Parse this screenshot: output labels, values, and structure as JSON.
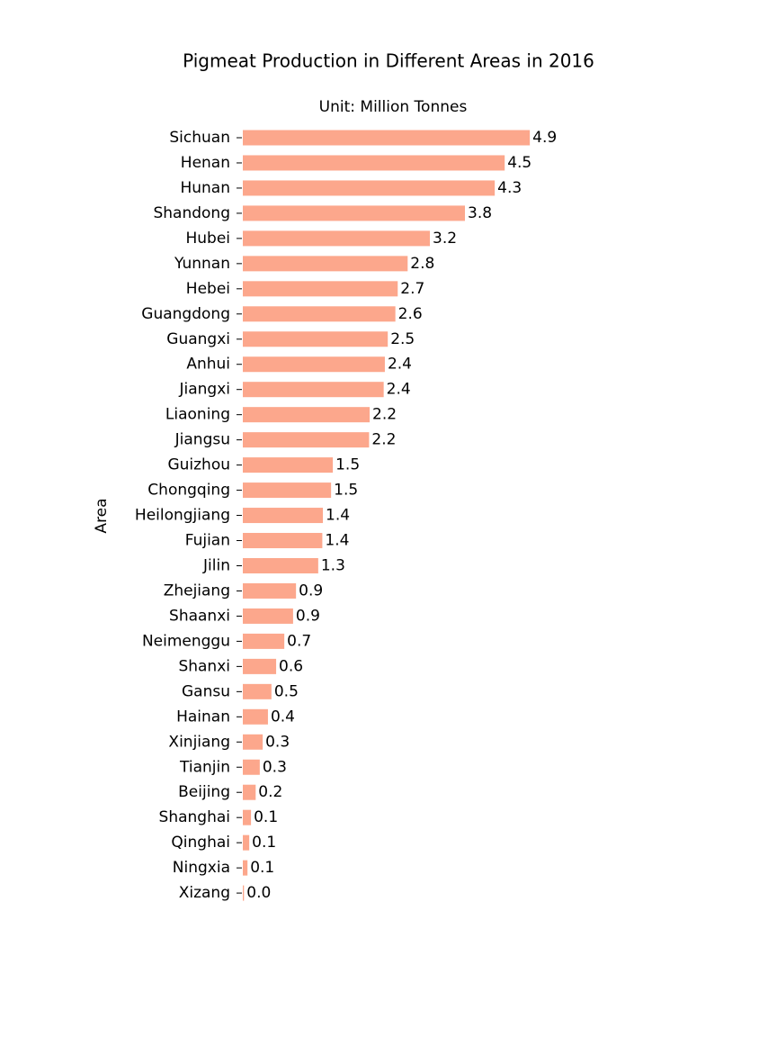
{
  "chart_data": {
    "type": "barh",
    "title": "Pigmeat Production in Different Areas in 2016",
    "subtitle": "Unit: Million Tonnes",
    "y_label": "Area",
    "color": "#fca78c",
    "xlim": [
      0,
      5
    ],
    "categories": [
      "Sichuan",
      "Henan",
      "Hunan",
      "Shandong",
      "Hubei",
      "Yunnan",
      "Hebei",
      "Guangdong",
      "Guangxi",
      "Anhui",
      "Jiangxi",
      "Liaoning",
      "Jiangsu",
      "Guizhou",
      "Chongqing",
      "Heilongjiang",
      "Fujian",
      "Jilin",
      "Zhejiang",
      "Shaanxi",
      "Neimenggu",
      "Shanxi",
      "Gansu",
      "Hainan",
      "Xinjiang",
      "Tianjin",
      "Beijing",
      "Shanghai",
      "Qinghai",
      "Ningxia",
      "Xizang"
    ],
    "values": [
      4.91,
      4.48,
      4.31,
      3.8,
      3.2,
      2.82,
      2.65,
      2.61,
      2.48,
      2.43,
      2.41,
      2.17,
      2.16,
      1.54,
      1.51,
      1.37,
      1.36,
      1.29,
      0.91,
      0.86,
      0.71,
      0.57,
      0.49,
      0.43,
      0.34,
      0.29,
      0.22,
      0.14,
      0.11,
      0.08,
      0.02
    ],
    "value_labels": [
      "4.9",
      "4.5",
      "4.3",
      "3.8",
      "3.2",
      "2.8",
      "2.7",
      "2.6",
      "2.5",
      "2.4",
      "2.4",
      "2.2",
      "2.2",
      "1.5",
      "1.5",
      "1.4",
      "1.4",
      "1.3",
      "0.9",
      "0.9",
      "0.7",
      "0.6",
      "0.5",
      "0.4",
      "0.3",
      "0.3",
      "0.2",
      "0.1",
      "0.1",
      "0.1",
      "0.0"
    ]
  }
}
